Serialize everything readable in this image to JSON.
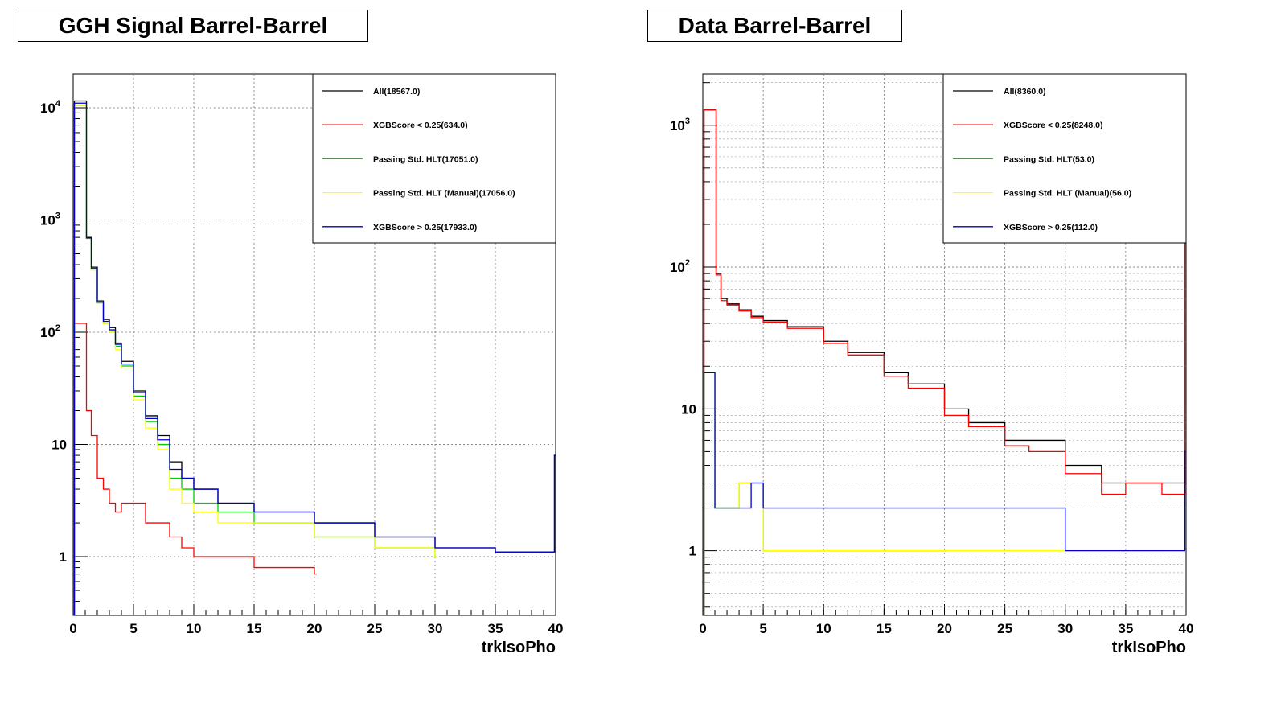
{
  "chart_data": [
    {
      "type": "line",
      "title": "GGH Signal Barrel-Barrel",
      "xlabel": "trkIsoPho",
      "ylabel": "",
      "xlim": [
        0,
        40
      ],
      "ylim": [
        0.3,
        20000
      ],
      "yscale": "log",
      "grid": true,
      "legend_position": "top-right",
      "x_ticks": [
        "0",
        "5",
        "10",
        "15",
        "20",
        "25",
        "30",
        "35",
        "40"
      ],
      "y_ticks": [
        {
          "value": 1,
          "base": "1",
          "exp": ""
        },
        {
          "value": 10,
          "base": "10",
          "exp": ""
        },
        {
          "value": 100,
          "base": "10",
          "exp": "2"
        },
        {
          "value": 1000,
          "base": "10",
          "exp": "3"
        },
        {
          "value": 10000,
          "base": "10",
          "exp": "4"
        }
      ],
      "legend": [
        {
          "label": "All(18567.0)",
          "color": "#000000"
        },
        {
          "label": "XGBScore < 0.25(634.0)",
          "color": "#ff0000"
        },
        {
          "label": "Passing Std. HLT(17051.0)",
          "color": "#00cc00"
        },
        {
          "label": "Passing Std. HLT (Manual)(17056.0)",
          "color": "#ffff00"
        },
        {
          "label": "XGBScore > 0.25(17933.0)",
          "color": "#0000cc"
        }
      ],
      "series": [
        {
          "name": "All(18567.0)",
          "color": "#000000",
          "x": [
            0.1,
            1.1,
            1.5,
            2.0,
            2.5,
            3.0,
            3.5,
            4.0,
            5.0,
            6.0,
            7.0,
            8.0,
            9.0,
            10.0,
            12.0,
            15.0,
            20.0,
            25.0,
            30.0,
            35.0,
            39.9
          ],
          "y": [
            11500,
            700,
            380,
            190,
            130,
            110,
            80,
            55,
            30,
            18,
            12,
            7,
            5,
            4,
            3,
            2.5,
            2,
            1.5,
            1.2,
            1.1,
            8
          ]
        },
        {
          "name": "XGBScore < 0.25(634.0)",
          "color": "#ff0000",
          "x": [
            0.1,
            1.1,
            1.5,
            2.0,
            2.5,
            3.0,
            3.5,
            4.0,
            5.0,
            6.0,
            7.0,
            8.0,
            9.0,
            10.0,
            12.0,
            15.0,
            20.0
          ],
          "y": [
            120,
            20,
            12,
            5,
            4,
            3,
            2.5,
            3,
            3,
            2,
            2,
            1.5,
            1.2,
            1,
            1,
            0.8,
            0.7
          ]
        },
        {
          "name": "Passing Std. HLT(17051.0)",
          "color": "#00cc00",
          "x": [
            0.1,
            1.1,
            1.5,
            2.0,
            2.5,
            3.0,
            3.5,
            4.0,
            5.0,
            6.0,
            7.0,
            8.0,
            9.0,
            10.0,
            12.0,
            15.0,
            20.0,
            25.0,
            30.0
          ],
          "y": [
            10500,
            680,
            360,
            180,
            120,
            100,
            75,
            50,
            27,
            16,
            10,
            5,
            4,
            3,
            2.5,
            2,
            1.5,
            1.2,
            1
          ]
        },
        {
          "name": "Passing Std. HLT (Manual)(17056.0)",
          "color": "#ffff00",
          "x": [
            0.1,
            1.1,
            1.5,
            2.0,
            2.5,
            3.0,
            3.5,
            4.0,
            5.0,
            6.0,
            7.0,
            8.0,
            9.0,
            10.0,
            12.0,
            15.0,
            20.0,
            25.0,
            30.0
          ],
          "y": [
            10500,
            680,
            360,
            180,
            120,
            100,
            70,
            48,
            25,
            14,
            9,
            4,
            3,
            2.5,
            2,
            2,
            1.5,
            1.2,
            1
          ]
        },
        {
          "name": "XGBScore > 0.25(17933.0)",
          "color": "#0000cc",
          "x": [
            0.1,
            1.1,
            1.5,
            2.0,
            2.5,
            3.0,
            3.5,
            4.0,
            5.0,
            6.0,
            7.0,
            8.0,
            9.0,
            10.0,
            12.0,
            15.0,
            20.0,
            25.0,
            30.0,
            35.0,
            39.9
          ],
          "y": [
            11000,
            690,
            370,
            185,
            125,
            105,
            78,
            52,
            29,
            17,
            11,
            6,
            5,
            4,
            3,
            2.5,
            2,
            1.5,
            1.2,
            1.1,
            8
          ]
        }
      ]
    },
    {
      "type": "line",
      "title": "Data Barrel-Barrel",
      "xlabel": "trkIsoPho",
      "ylabel": "",
      "xlim": [
        0,
        40
      ],
      "ylim": [
        0.35,
        2300
      ],
      "yscale": "log",
      "grid": true,
      "legend_position": "top-right",
      "x_ticks": [
        "0",
        "5",
        "10",
        "15",
        "20",
        "25",
        "30",
        "35",
        "40"
      ],
      "y_ticks": [
        {
          "value": 1,
          "base": "1",
          "exp": ""
        },
        {
          "value": 10,
          "base": "10",
          "exp": ""
        },
        {
          "value": 100,
          "base": "10",
          "exp": "2"
        },
        {
          "value": 1000,
          "base": "10",
          "exp": "3"
        }
      ],
      "legend": [
        {
          "label": "All(8360.0)",
          "color": "#000000"
        },
        {
          "label": "XGBScore < 0.25(8248.0)",
          "color": "#ff0000"
        },
        {
          "label": "Passing Std. HLT(53.0)",
          "color": "#00cc00"
        },
        {
          "label": "Passing Std. HLT (Manual)(56.0)",
          "color": "#ffff00"
        },
        {
          "label": "XGBScore > 0.25(112.0)",
          "color": "#0000cc"
        }
      ],
      "series": [
        {
          "name": "All(8360.0)",
          "color": "#000000",
          "x": [
            0.1,
            1.1,
            1.5,
            2.0,
            3.0,
            4.0,
            5.0,
            7.0,
            10.0,
            12.0,
            15.0,
            17.0,
            20.0,
            22.0,
            25.0,
            27.0,
            30.0,
            33.0,
            35.0,
            38.0,
            39.9
          ],
          "y": [
            1300,
            90,
            60,
            55,
            50,
            45,
            42,
            38,
            30,
            25,
            18,
            15,
            10,
            8,
            6,
            6,
            4,
            3,
            3,
            3,
            400
          ]
        },
        {
          "name": "XGBScore < 0.25(8248.0)",
          "color": "#ff0000",
          "x": [
            0.1,
            1.1,
            1.5,
            2.0,
            3.0,
            4.0,
            5.0,
            7.0,
            10.0,
            12.0,
            15.0,
            17.0,
            20.0,
            22.0,
            25.0,
            27.0,
            30.0,
            33.0,
            35.0,
            38.0,
            39.9
          ],
          "y": [
            1280,
            88,
            58,
            54,
            49,
            44,
            41,
            37,
            29,
            24,
            17,
            14,
            9,
            7.5,
            5.5,
            5,
            3.5,
            2.5,
            3,
            2.5,
            380
          ]
        },
        {
          "name": "Passing Std. HLT(53.0)",
          "color": "#00cc00",
          "x": [
            0.1,
            1.0,
            3.0,
            5.0,
            10.0,
            15.0,
            20.0
          ],
          "y": [
            18,
            2,
            3,
            1,
            1,
            1,
            1
          ]
        },
        {
          "name": "Passing Std. HLT (Manual)(56.0)",
          "color": "#ffff00",
          "x": [
            0.1,
            1.0,
            3.0,
            5.0,
            10.0,
            15.0,
            20.0,
            38.0
          ],
          "y": [
            18,
            2,
            3,
            1,
            1,
            1,
            1,
            1
          ]
        },
        {
          "name": "XGBScore > 0.25(112.0)",
          "color": "#0000cc",
          "x": [
            0.1,
            1.0,
            3.0,
            4.0,
            5.0,
            10.0,
            15.0,
            20.0,
            25.0,
            30.0,
            39.9
          ],
          "y": [
            18,
            2,
            2,
            3,
            2,
            2,
            2,
            2,
            2,
            1,
            5
          ]
        }
      ]
    }
  ]
}
